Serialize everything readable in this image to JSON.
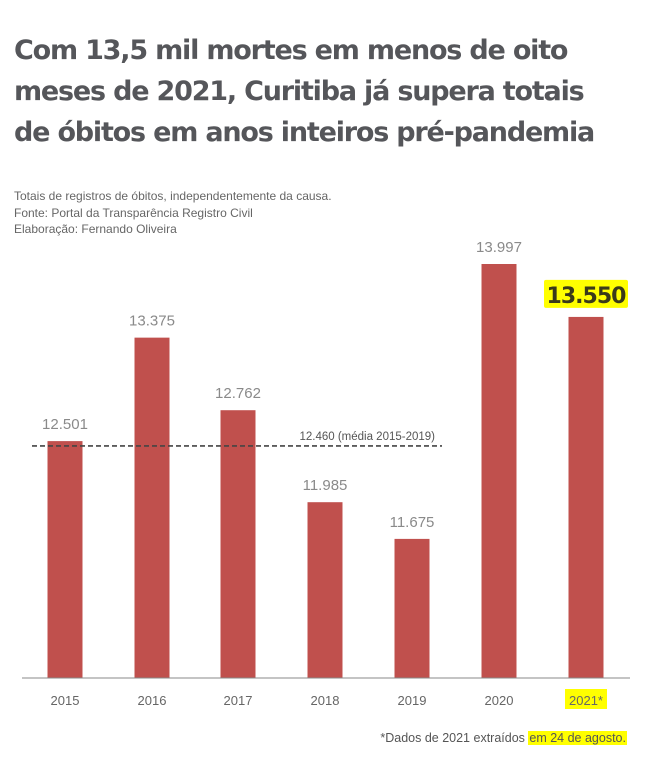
{
  "title_lines": [
    "Com 13,5 mil mortes em menos de oito",
    "meses de 2021, Curitiba já supera totais",
    "de óbitos em anos inteiros pré-pandemia"
  ],
  "notes": [
    "Totais de registros de óbitos, independentemente da causa.",
    "Fonte: Portal da Transparência Registro Civil",
    "Elaboração: Fernando Oliveira"
  ],
  "footnote": {
    "prefix": "*Dados de 2021 extraídos ",
    "highlighted": "em 24 de agosto."
  },
  "colors": {
    "bar": "#c0504d",
    "highlight": "#ffff00",
    "text": "#55565a"
  },
  "chart_data": {
    "type": "bar",
    "title": "Com 13,5 mil mortes em menos de oito meses de 2021, Curitiba já supera totais de óbitos em anos inteiros pré-pandemia",
    "xlabel": "",
    "ylabel": "",
    "categories": [
      "2015",
      "2016",
      "2017",
      "2018",
      "2019",
      "2020",
      "2021*"
    ],
    "values": [
      12501,
      13375,
      12762,
      11985,
      11675,
      13997,
      13550
    ],
    "value_labels": [
      "12.501",
      "13.375",
      "12.762",
      "11.985",
      "11.675",
      "13.997",
      "13.550"
    ],
    "highlighted_index": 6,
    "ylim": [
      10500,
      14000
    ],
    "grid": false,
    "reference_line": {
      "value": 12460,
      "label": "12.460 (média 2015-2019)",
      "style": "dashed"
    }
  }
}
